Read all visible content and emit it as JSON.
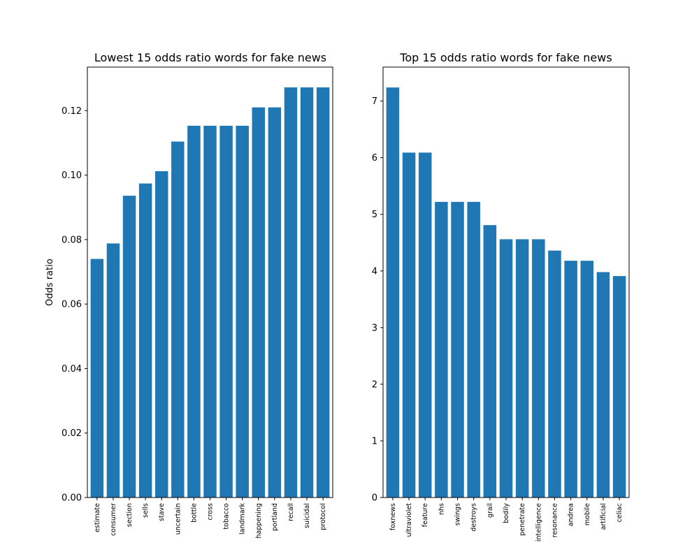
{
  "chart_data": [
    {
      "type": "bar",
      "title": "Lowest 15 odds ratio words for fake news",
      "xlabel": "",
      "ylabel": "Odds ratio",
      "categories": [
        "estimate",
        "consumer",
        "section",
        "sells",
        "stave",
        "uncertain",
        "bottle",
        "cross",
        "tobacco",
        "landmark",
        "happening",
        "portland",
        "recall",
        "suicidal",
        "protocol"
      ],
      "values": [
        0.074,
        0.0788,
        0.0936,
        0.0974,
        0.1012,
        0.1104,
        0.1153,
        0.1153,
        0.1153,
        0.1153,
        0.121,
        0.121,
        0.1272,
        0.1272,
        0.1272
      ],
      "ylim": [
        0,
        0.1335
      ],
      "yticks": [
        "0.00",
        "0.02",
        "0.04",
        "0.06",
        "0.08",
        "0.10",
        "0.12"
      ],
      "ytick_values": [
        0,
        0.02,
        0.04,
        0.06,
        0.08,
        0.1,
        0.12
      ],
      "bar_color": "#1f77b4"
    },
    {
      "type": "bar",
      "title": "Top 15 odds ratio words for fake news",
      "xlabel": "",
      "ylabel": "",
      "categories": [
        "foxnews",
        "ultraviolet",
        "feature",
        "nhs",
        "swings",
        "destroys",
        "grail",
        "bodily",
        "penetrate",
        "intelligence",
        "resonance",
        "andrea",
        "mobile",
        "artificial",
        "celiac"
      ],
      "values": [
        7.24,
        6.09,
        6.09,
        5.22,
        5.22,
        5.22,
        4.81,
        4.56,
        4.56,
        4.56,
        4.36,
        4.18,
        4.18,
        3.98,
        3.91
      ],
      "ylim": [
        0,
        7.6
      ],
      "yticks": [
        "0",
        "1",
        "2",
        "3",
        "4",
        "5",
        "6",
        "7"
      ],
      "ytick_values": [
        0,
        1,
        2,
        3,
        4,
        5,
        6,
        7
      ],
      "bar_color": "#1f77b4"
    }
  ]
}
